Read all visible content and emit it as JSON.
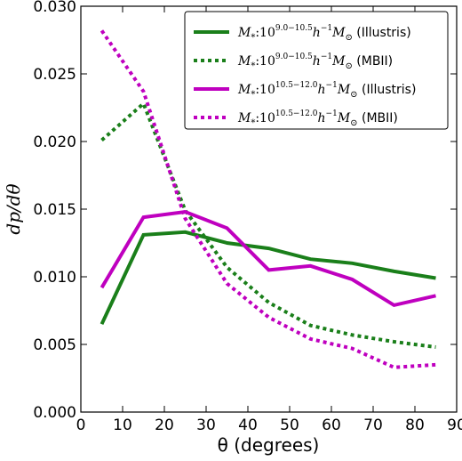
{
  "chart_data": {
    "type": "line",
    "xlabel": "θ (degrees)",
    "ylabel": "dp/dθ",
    "xlim": [
      0,
      90
    ],
    "ylim": [
      0,
      0.03
    ],
    "xticks": [
      0,
      10,
      20,
      30,
      40,
      50,
      60,
      70,
      80,
      90
    ],
    "xtick_labels": [
      "0",
      "10",
      "20",
      "30",
      "40",
      "50",
      "60",
      "70",
      "80",
      "90"
    ],
    "yticks": [
      0,
      0.005,
      0.01,
      0.015,
      0.02,
      0.025,
      0.03
    ],
    "ytick_labels": [
      "0.000",
      "0.005",
      "0.010",
      "0.015",
      "0.020",
      "0.025",
      "0.030"
    ],
    "grid": false,
    "legend_position": "top-right",
    "x": [
      5,
      15,
      25,
      35,
      45,
      55,
      65,
      75,
      85
    ],
    "series": [
      {
        "name": "M*:10^(9.0-10.5) h^-1 M☉ (Illustris)",
        "legend": {
          "mass_prefix": "M",
          "subscript": "*",
          "base": "10",
          "exponent": "9.0−10.5",
          "h_unit": "h",
          "h_exp": "−1",
          "m_unit": "M",
          "m_sub": "⊙",
          "sim": "(Illustris)"
        },
        "color": "#1a7f1a",
        "style": "solid",
        "values": [
          0.0065,
          0.0131,
          0.0133,
          0.0125,
          0.0121,
          0.0113,
          0.011,
          0.0104,
          0.0099
        ]
      },
      {
        "name": "M*:10^(9.0-10.5) h^-1 M☉ (MBII)",
        "legend": {
          "mass_prefix": "M",
          "subscript": "*",
          "base": "10",
          "exponent": "9.0−10.5",
          "h_unit": "h",
          "h_exp": "−1",
          "m_unit": "M",
          "m_sub": "⊙",
          "sim": "(MBII)"
        },
        "color": "#1a7f1a",
        "style": "dotted",
        "values": [
          0.0201,
          0.0228,
          0.0149,
          0.0107,
          0.0081,
          0.0064,
          0.0057,
          0.0052,
          0.0048
        ]
      },
      {
        "name": "M*:10^(10.5-12.0) h^-1 M☉ (Illustris)",
        "legend": {
          "mass_prefix": "M",
          "subscript": "*",
          "base": "10",
          "exponent": "10.5−12.0",
          "h_unit": "h",
          "h_exp": "−1",
          "m_unit": "M",
          "m_sub": "⊙",
          "sim": "(Illustris)"
        },
        "color": "#bf00bf",
        "style": "solid",
        "values": [
          0.0092,
          0.0144,
          0.0148,
          0.0136,
          0.0105,
          0.0108,
          0.0098,
          0.0079,
          0.0086
        ]
      },
      {
        "name": "M*:10^(10.5-12.0) h^-1 M☉ (MBII)",
        "legend": {
          "mass_prefix": "M",
          "subscript": "*",
          "base": "10",
          "exponent": "10.5−12.0",
          "h_unit": "h",
          "h_exp": "−1",
          "m_unit": "M",
          "m_sub": "⊙",
          "sim": "(MBII)"
        },
        "color": "#bf00bf",
        "style": "dotted",
        "values": [
          0.0282,
          0.0237,
          0.0143,
          0.0095,
          0.007,
          0.0054,
          0.0047,
          0.0033,
          0.0035
        ]
      }
    ]
  }
}
